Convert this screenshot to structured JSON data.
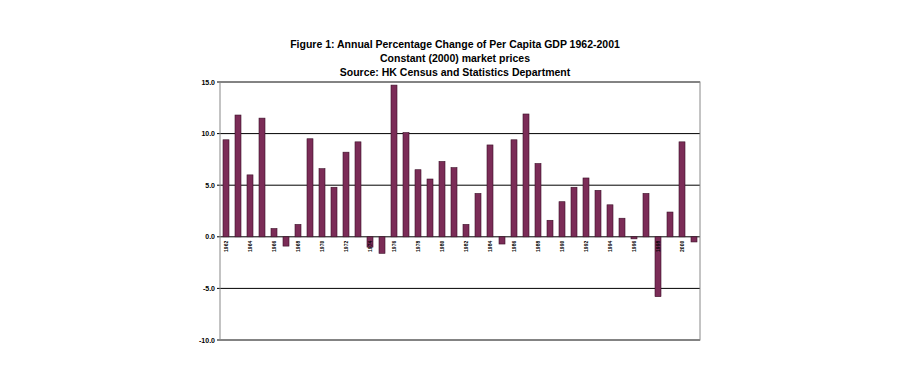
{
  "chart_data": {
    "type": "bar",
    "title": "Figure 1: Annual Percentage Change of Per Capita GDP 1962-2001",
    "subtitle": "Constant (2000) market prices",
    "annotations": [
      "Source: HK Census and Statistics Department"
    ],
    "categories": [
      "1962",
      null,
      "1964",
      null,
      "1966",
      null,
      "1968",
      null,
      "1970",
      null,
      "1972",
      null,
      "1974",
      null,
      "1976",
      null,
      "1978",
      null,
      "1980",
      null,
      "1982",
      null,
      "1984",
      null,
      "1986",
      null,
      "1988",
      null,
      "1990",
      null,
      "1992",
      null,
      "1994",
      null,
      "1996",
      null,
      "1998",
      null,
      "2000",
      null
    ],
    "values": [
      9.4,
      11.8,
      6.0,
      11.5,
      0.8,
      -0.9,
      1.2,
      9.5,
      6.6,
      4.8,
      8.2,
      9.2,
      -1.0,
      -1.6,
      14.7,
      10.1,
      6.5,
      5.6,
      7.3,
      6.7,
      1.2,
      4.2,
      8.9,
      -0.7,
      9.4,
      11.9,
      7.1,
      1.6,
      3.4,
      4.8,
      5.7,
      4.5,
      3.1,
      1.8,
      -0.2,
      4.2,
      -5.8,
      2.4,
      9.2,
      -0.5
    ],
    "color": "#7b2c57",
    "ylim": [
      -10,
      15
    ],
    "yticks": [
      {
        "value": -10,
        "label": "-10.0"
      },
      {
        "value": -5,
        "label": "-5.0"
      },
      {
        "value": 0,
        "label": "0.0"
      },
      {
        "value": 5,
        "label": "5.0"
      },
      {
        "value": 10,
        "label": "10.0"
      },
      {
        "value": 15,
        "label": "15.0"
      }
    ],
    "grid": true
  }
}
